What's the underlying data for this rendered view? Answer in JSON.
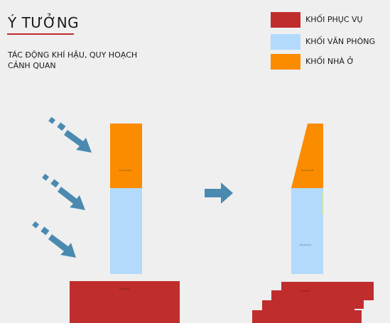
{
  "header": {
    "title": "Ý TƯỞNG",
    "subtitle": "TÁC ĐỘNG KHÍ HẬU, QUY HOẠCH CẢNH QUAN"
  },
  "legend": [
    {
      "label": "KHỐI PHỤC VỤ",
      "color": "#bf2d2c"
    },
    {
      "label": "KHỐI VĂN PHÒNG",
      "color": "#b3dafc"
    },
    {
      "label": "KHỐI NHÀ Ở",
      "color": "#fb8c00"
    }
  ],
  "colors": {
    "arrow": "#4a8ab1",
    "service": "#bf2d2c",
    "office": "#b3dafc",
    "residential": "#fb8c00"
  }
}
